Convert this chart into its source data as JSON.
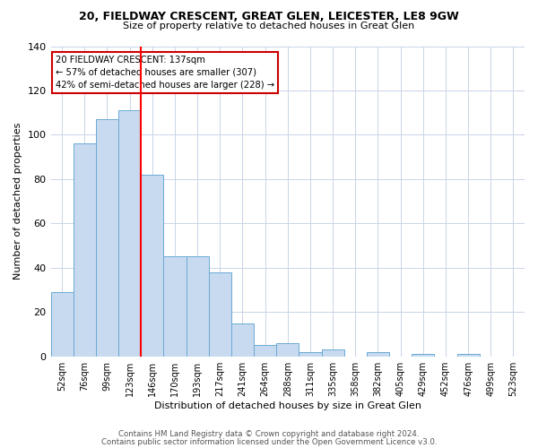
{
  "title": "20, FIELDWAY CRESCENT, GREAT GLEN, LEICESTER, LE8 9GW",
  "subtitle": "Size of property relative to detached houses in Great Glen",
  "xlabel": "Distribution of detached houses by size in Great Glen",
  "ylabel": "Number of detached properties",
  "bar_color": "#c8daf0",
  "bar_edge_color": "#6aaad4",
  "bar_heights": [
    29,
    96,
    107,
    111,
    82,
    45,
    45,
    38,
    15,
    5,
    6,
    2,
    3,
    0,
    2,
    0,
    1,
    0,
    1
  ],
  "x_labels": [
    "52sqm",
    "76sqm",
    "99sqm",
    "123sqm",
    "146sqm",
    "170sqm",
    "193sqm",
    "217sqm",
    "241sqm",
    "264sqm",
    "288sqm",
    "311sqm",
    "335sqm",
    "358sqm",
    "382sqm",
    "405sqm",
    "429sqm",
    "452sqm",
    "476sqm",
    "499sqm",
    "523sqm"
  ],
  "ylim": [
    0,
    140
  ],
  "yticks": [
    0,
    20,
    40,
    60,
    80,
    100,
    120,
    140
  ],
  "red_line_index": 4,
  "annotation_title": "20 FIELDWAY CRESCENT: 137sqm",
  "annotation_line1": "← 57% of detached houses are smaller (307)",
  "annotation_line2": "42% of semi-detached houses are larger (228) →",
  "annotation_box_color": "#ffffff",
  "annotation_box_edge": "#cc0000",
  "footer_line1": "Contains HM Land Registry data © Crown copyright and database right 2024.",
  "footer_line2": "Contains public sector information licensed under the Open Government Licence v3.0.",
  "background_color": "#ffffff",
  "grid_color": "#c8d4e8"
}
